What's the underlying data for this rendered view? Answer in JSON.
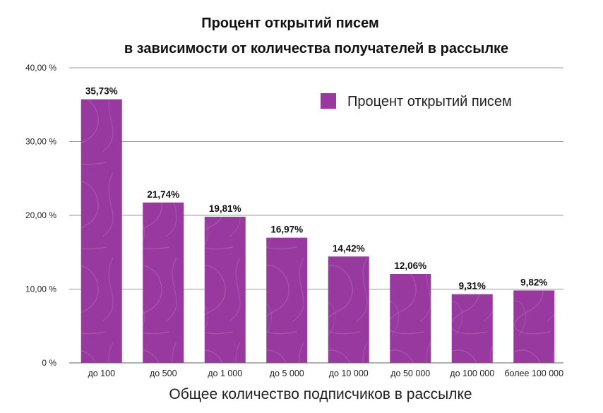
{
  "chart_data": {
    "type": "bar",
    "title": [
      "Процент открытий писем",
      "в зависимости от количества получателей в рассылке"
    ],
    "xlabel": "Общее количество подписчиков в рассылке",
    "ylabel": "",
    "categories": [
      "до 100",
      "до 500",
      "до 1 000",
      "до 5 000",
      "до 10 000",
      "до 50 000",
      "до 100 000",
      "более 100 000"
    ],
    "series": [
      {
        "name": "Процент открытий писем",
        "values": [
          35.73,
          21.74,
          19.81,
          16.97,
          14.42,
          12.06,
          9.31,
          9.82
        ],
        "labels": [
          "35,73%",
          "21,74%",
          "19,81%",
          "16,97%",
          "14,42%",
          "12,06%",
          "9,31%",
          "9,82%"
        ]
      }
    ],
    "ylim": [
      0,
      40
    ],
    "yticks": [
      0,
      10,
      20,
      30,
      40
    ],
    "ytick_labels": [
      "0 %",
      "10,00 %",
      "20,00 %",
      "30,00 %",
      "40,00 %"
    ],
    "grid": true,
    "legend_position": "top-right",
    "colors": {
      "bar": "#98399f",
      "bar_pattern": "#b86cbd"
    }
  }
}
